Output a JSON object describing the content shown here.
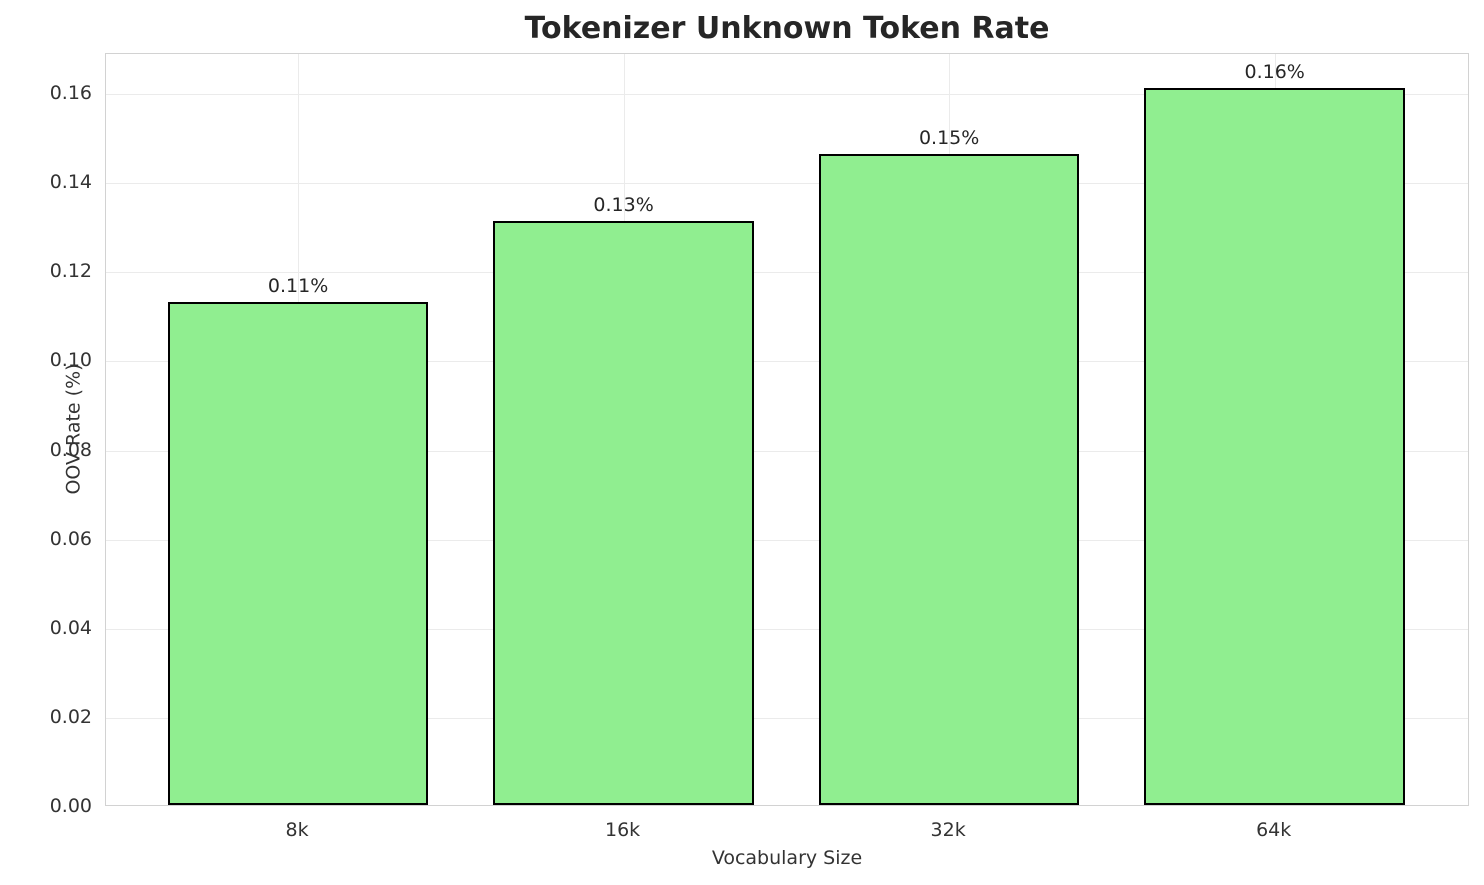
{
  "chart_data": {
    "type": "bar",
    "title": "Tokenizer Unknown Token Rate",
    "xlabel": "Vocabulary Size",
    "ylabel": "OOV Rate (%)",
    "categories": [
      "8k",
      "16k",
      "32k",
      "64k"
    ],
    "values": [
      0.113,
      0.131,
      0.146,
      0.161
    ],
    "bar_labels": [
      "0.11%",
      "0.13%",
      "0.15%",
      "0.16%"
    ],
    "yticks": [
      0.0,
      0.02,
      0.04,
      0.06,
      0.08,
      0.1,
      0.12,
      0.14,
      0.16
    ],
    "ytick_labels": [
      "0.00",
      "0.02",
      "0.04",
      "0.06",
      "0.08",
      "0.10",
      "0.12",
      "0.14",
      "0.16"
    ],
    "ylim": [
      0,
      0.169
    ],
    "grid": true,
    "legend": false,
    "bar_color": "#90EE90",
    "bar_edge_color": "#000000",
    "grid_color": "#ebebeb",
    "spine_color": "#d2d2d2",
    "text_color": "#262626"
  }
}
